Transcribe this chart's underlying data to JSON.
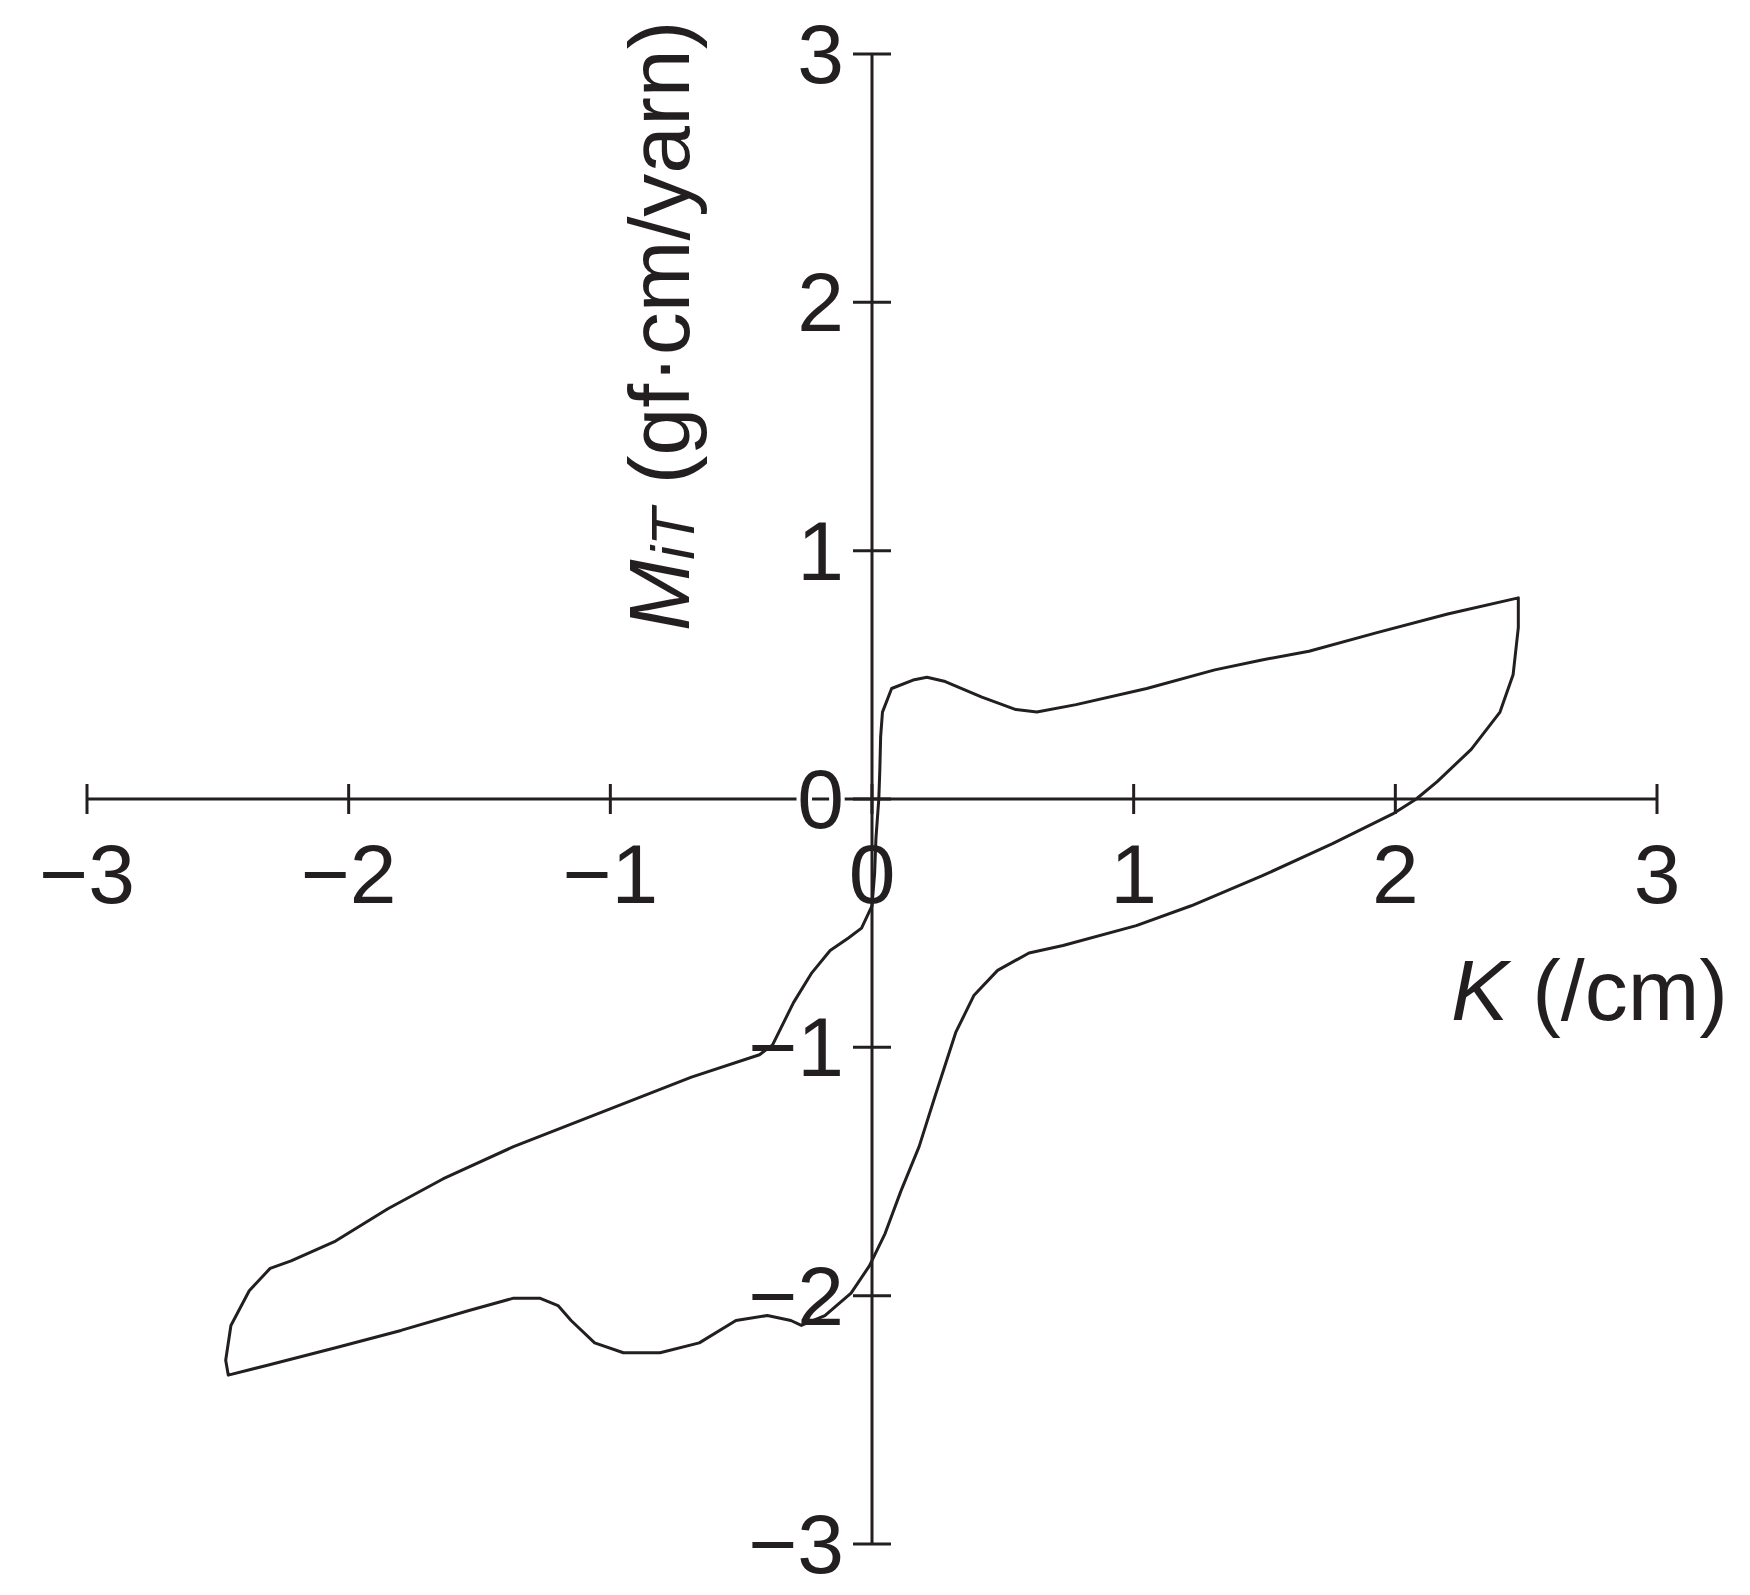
{
  "chart_data": {
    "type": "line",
    "xlabel": "K (/cm)",
    "ylabel": "M$_{iT}$ (gf·cm/yarn)",
    "xlim": [
      -3,
      3
    ],
    "ylim": [
      -3,
      3
    ],
    "xticks": [
      {
        "value": -3,
        "label": "−3"
      },
      {
        "value": -2,
        "label": "−2"
      },
      {
        "value": -1,
        "label": "−1"
      },
      0,
      1,
      2,
      3
    ],
    "yticks": [
      {
        "value": -3,
        "label": "−3"
      },
      {
        "value": -2,
        "label": "−2"
      },
      {
        "value": -1,
        "label": "−1"
      },
      0,
      1,
      2,
      3
    ],
    "marker": "none",
    "line_style": "solid",
    "color": "#231f20",
    "x": [
      0.026,
      0.03,
      0.033,
      0.04,
      0.075,
      0.157,
      0.21,
      0.28,
      0.42,
      0.55,
      0.63,
      0.78,
      1.05,
      1.31,
      1.49,
      1.67,
      1.93,
      2.2,
      2.47,
      2.47,
      2.45,
      2.4,
      2.29,
      2.16,
      2.08,
      1.99,
      1.76,
      1.49,
      1.22,
      1.01,
      0.73,
      0.6,
      0.48,
      0.39,
      0.32,
      0.24,
      0.18,
      0.11,
      0.05,
      -0.01,
      -0.08,
      -0.18,
      -0.27,
      -0.31,
      -0.4,
      -0.52,
      -0.66,
      -0.81,
      -0.95,
      -1.06,
      -1.15,
      -1.2,
      -1.27,
      -1.37,
      -1.54,
      -1.8,
      -2.05,
      -2.31,
      -2.46,
      -2.47,
      -2.45,
      -2.38,
      -2.3,
      -2.22,
      -2.05,
      -1.85,
      -1.64,
      -1.37,
      -1.03,
      -0.69,
      -0.43,
      -0.38,
      -0.3,
      -0.23,
      -0.16,
      -0.09,
      -0.04,
      0,
      0.01,
      0.015,
      0.026,
      0.03
    ],
    "values": [
      0,
      0.12,
      0.25,
      0.35,
      0.445,
      0.479,
      0.49,
      0.473,
      0.41,
      0.36,
      0.35,
      0.38,
      0.445,
      0.52,
      0.56,
      0.595,
      0.67,
      0.745,
      0.81,
      0.69,
      0.5,
      0.35,
      0.2,
      0.07,
      0,
      -0.06,
      -0.18,
      -0.31,
      -0.43,
      -0.51,
      -0.59,
      -0.62,
      -0.69,
      -0.79,
      -0.94,
      -1.2,
      -1.4,
      -1.58,
      -1.75,
      -1.88,
      -1.99,
      -2.08,
      -2.12,
      -2.1,
      -2.08,
      -2.1,
      -2.19,
      -2.23,
      -2.23,
      -2.19,
      -2.1,
      -2.04,
      -2.01,
      -2.01,
      -2.06,
      -2.14,
      -2.21,
      -2.28,
      -2.32,
      -2.26,
      -2.12,
      -1.98,
      -1.89,
      -1.86,
      -1.78,
      -1.65,
      -1.53,
      -1.4,
      -1.26,
      -1.12,
      -1.03,
      -0.99,
      -0.82,
      -0.7,
      -0.61,
      -0.56,
      -0.52,
      -0.43,
      -0.3,
      -0.16,
      0,
      0.12
    ]
  }
}
